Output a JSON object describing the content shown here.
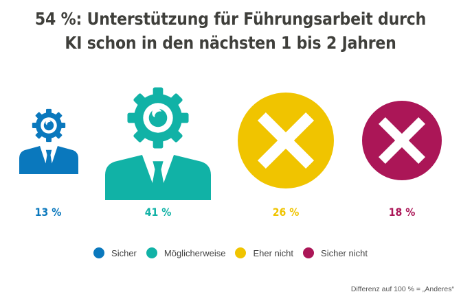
{
  "title": {
    "line1": "54 %: Unterstützung für Führungsarbeit durch",
    "line2": "KI schon in den nächsten 1 bis 2 Jahren"
  },
  "chart_data": {
    "type": "pictogram",
    "title": "54 %: Unterstützung für Führungsarbeit durch KI schon in den nächsten 1 bis 2 Jahren",
    "unit": "%",
    "categories": [
      "Sicher",
      "Möglicherweise",
      "Eher nicht",
      "Sicher nicht"
    ],
    "values": [
      13,
      41,
      26,
      18
    ],
    "value_labels": [
      "13 %",
      "41 %",
      "26 %",
      "18 %"
    ],
    "colors": [
      "#0a78bd",
      "#11b2a6",
      "#f0c400",
      "#ab1657"
    ],
    "icons": [
      "person-gear-icon",
      "person-gear-icon",
      "x-circle-icon",
      "x-circle-icon"
    ],
    "legend": {
      "position": "bottom",
      "entries": [
        "Sicher",
        "Möglicherweise",
        "Eher nicht",
        "Sicher nicht"
      ]
    },
    "footnote": "Differenz auf 100 % = „Anderes“"
  }
}
